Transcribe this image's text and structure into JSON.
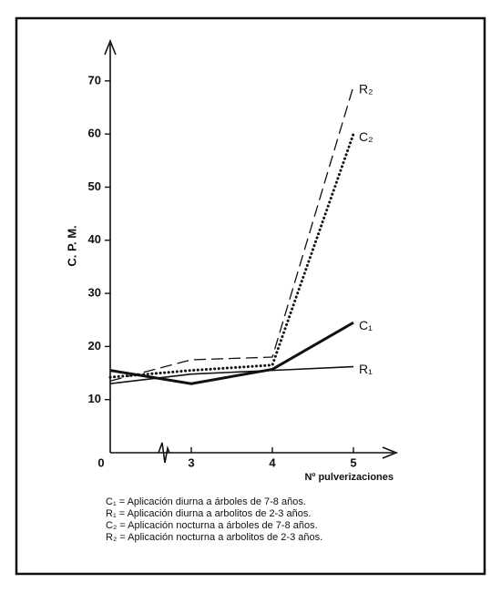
{
  "chart_data": {
    "type": "line",
    "y_label": "C. P. M.",
    "x_label": "Nº pulverizaciones",
    "categories": [
      "0",
      "3",
      "4",
      "5"
    ],
    "ylim": [
      0,
      77
    ],
    "yticks": [
      10,
      20,
      30,
      40,
      50,
      60,
      70
    ],
    "series": [
      {
        "name": "R₂",
        "color": "#111111",
        "style": "dashed",
        "values": [
          13.5,
          17.5,
          18,
          69
        ]
      },
      {
        "name": "C₂",
        "color": "#111111",
        "style": "dotted",
        "values": [
          14.2,
          15.5,
          16.5,
          60
        ]
      },
      {
        "name": "C₁",
        "color": "#111111",
        "style": "thick",
        "values": [
          15.5,
          13,
          15.7,
          24.5
        ]
      },
      {
        "name": "R₁",
        "color": "#111111",
        "style": "thin",
        "values": [
          13,
          14.8,
          15.5,
          16.2
        ]
      }
    ],
    "legend_notes": [
      "C₁ = Aplicación diurna a árboles de 7-8 años.",
      "R₁ = Aplicación diurna a arbolitos de 2-3 años.",
      "C₂ = Aplicación nocturna a árboles de 7-8 años.",
      "R₂ = Aplicación nocturna a arbolitos de 2-3 años."
    ]
  }
}
